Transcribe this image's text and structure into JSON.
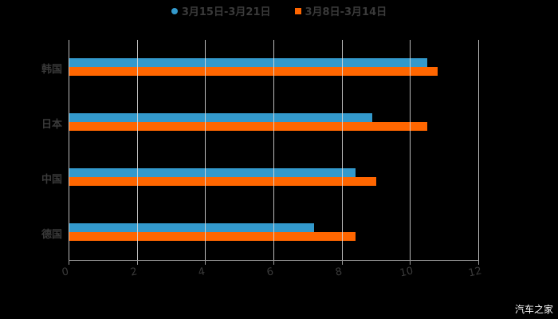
{
  "legend": [
    {
      "label": "3月15日-3月21日",
      "color": "#3399cc",
      "shape": "circle"
    },
    {
      "label": "3月8日-3月14日",
      "color": "#ff6600",
      "shape": "square"
    }
  ],
  "watermark": "汽车之家",
  "chart_data": {
    "type": "bar",
    "orientation": "horizontal",
    "title": "",
    "categories": [
      "韩国",
      "日本",
      "中国",
      "德国"
    ],
    "series": [
      {
        "name": "3月15日-3月21日",
        "color": "#3399cc",
        "values": [
          10.5,
          8.9,
          8.4,
          7.2
        ]
      },
      {
        "name": "3月8日-3月14日",
        "color": "#ff6600",
        "values": [
          10.8,
          10.5,
          9.0,
          8.4
        ]
      }
    ],
    "xlabel": "",
    "ylabel": "",
    "xlim": [
      0,
      12
    ],
    "xticks": [
      "0",
      "2",
      "4",
      "6",
      "8",
      "10",
      "12"
    ],
    "grid": true,
    "legend_position": "top"
  }
}
